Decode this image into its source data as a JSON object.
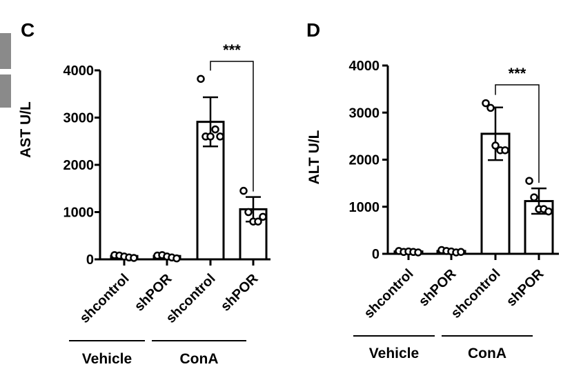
{
  "colors": {
    "ink": "#000000",
    "background": "#ffffff",
    "edge_gray": "#8a8a8a"
  },
  "chart_data": [
    {
      "panel_label": "C",
      "type": "bar",
      "categories": [
        "shcontrol",
        "shPOR",
        "shcontrol",
        "shPOR"
      ],
      "groups": [
        {
          "label": "Vehicle",
          "categories": [
            0,
            1
          ]
        },
        {
          "label": "ConA",
          "categories": [
            2,
            3
          ]
        }
      ],
      "values": [
        70,
        70,
        2910,
        1060
      ],
      "errors": [
        10,
        10,
        520,
        260
      ],
      "points": [
        [
          90,
          80,
          60,
          40,
          30
        ],
        [
          80,
          90,
          60,
          40,
          20
        ],
        [
          3820,
          2600,
          2600,
          2750,
          2600
        ],
        [
          1450,
          1000,
          800,
          800,
          900
        ]
      ],
      "ylabel": "AST U/L",
      "ylim": [
        0,
        4000
      ],
      "yticks": [
        0,
        1000,
        2000,
        3000,
        4000
      ],
      "significance": {
        "between": [
          2,
          3
        ],
        "label": "***"
      },
      "grid": false
    },
    {
      "panel_label": "D",
      "type": "bar",
      "categories": [
        "shcontrol",
        "shPOR",
        "shcontrol",
        "shPOR"
      ],
      "groups": [
        {
          "label": "Vehicle",
          "categories": [
            0,
            1
          ]
        },
        {
          "label": "ConA",
          "categories": [
            2,
            3
          ]
        }
      ],
      "values": [
        50,
        60,
        2550,
        1120
      ],
      "errors": [
        10,
        10,
        560,
        270
      ],
      "points": [
        [
          60,
          40,
          50,
          40,
          30
        ],
        [
          80,
          60,
          50,
          30,
          40
        ],
        [
          3200,
          3100,
          2300,
          2200,
          2200
        ],
        [
          1550,
          1200,
          950,
          950,
          900
        ]
      ],
      "ylabel": "ALT U/L",
      "ylim": [
        0,
        4000
      ],
      "yticks": [
        0,
        1000,
        2000,
        3000,
        4000
      ],
      "significance": {
        "between": [
          2,
          3
        ],
        "label": "***"
      },
      "grid": false
    }
  ]
}
